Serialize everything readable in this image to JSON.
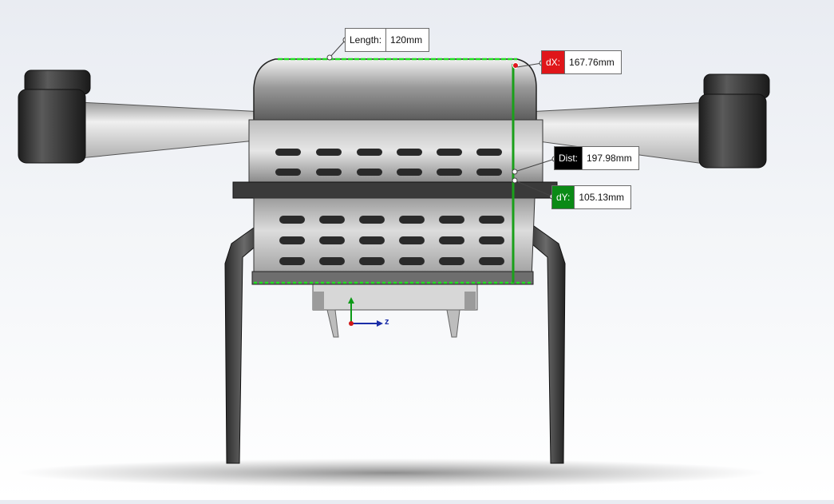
{
  "viewport": {
    "model": "quadcopter-drone-front-view",
    "background": "#eef0f5"
  },
  "measurements": {
    "length": {
      "label": "Length:",
      "value": "120mm",
      "color": "#ffffff"
    },
    "dx": {
      "label": "dX:",
      "value": "167.76mm",
      "color": "#e0161a"
    },
    "dist": {
      "label": "Dist:",
      "value": "197.98mm",
      "color": "#000000"
    },
    "dy": {
      "label": "dY:",
      "value": "105.13mm",
      "color": "#0b8a16"
    }
  },
  "triad": {
    "axis_label": "z"
  },
  "colors": {
    "measure_line": "#1aa01a",
    "highlight_edge": "#22e022",
    "body_dark": "#2a2a2a",
    "arm_light": "#d8d8d8"
  }
}
